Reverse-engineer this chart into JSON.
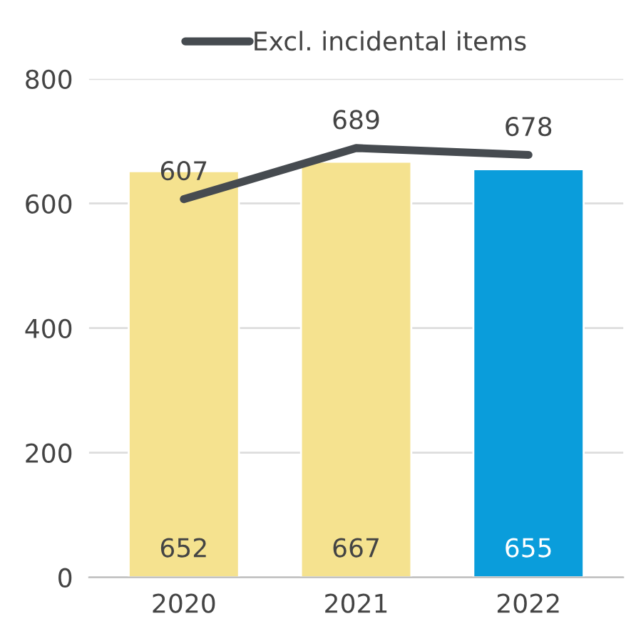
{
  "chart_data": {
    "type": "bar",
    "categories": [
      "2020",
      "2021",
      "2022"
    ],
    "series": [
      {
        "colors": [
          "#f5e28f",
          "#f5e28f",
          "#0a9ddb"
        ],
        "values": [
          652,
          667,
          655
        ]
      },
      {
        "type": "line",
        "name": "Excl. incidental items",
        "color": "#464b50",
        "values": [
          607,
          689,
          678
        ]
      }
    ],
    "ylim": [
      0,
      800
    ],
    "yticks": [
      0,
      200,
      400,
      600,
      800
    ],
    "grid": "y",
    "legend": "top",
    "data_labels": true,
    "line_style": "solid",
    "marker": "none"
  }
}
